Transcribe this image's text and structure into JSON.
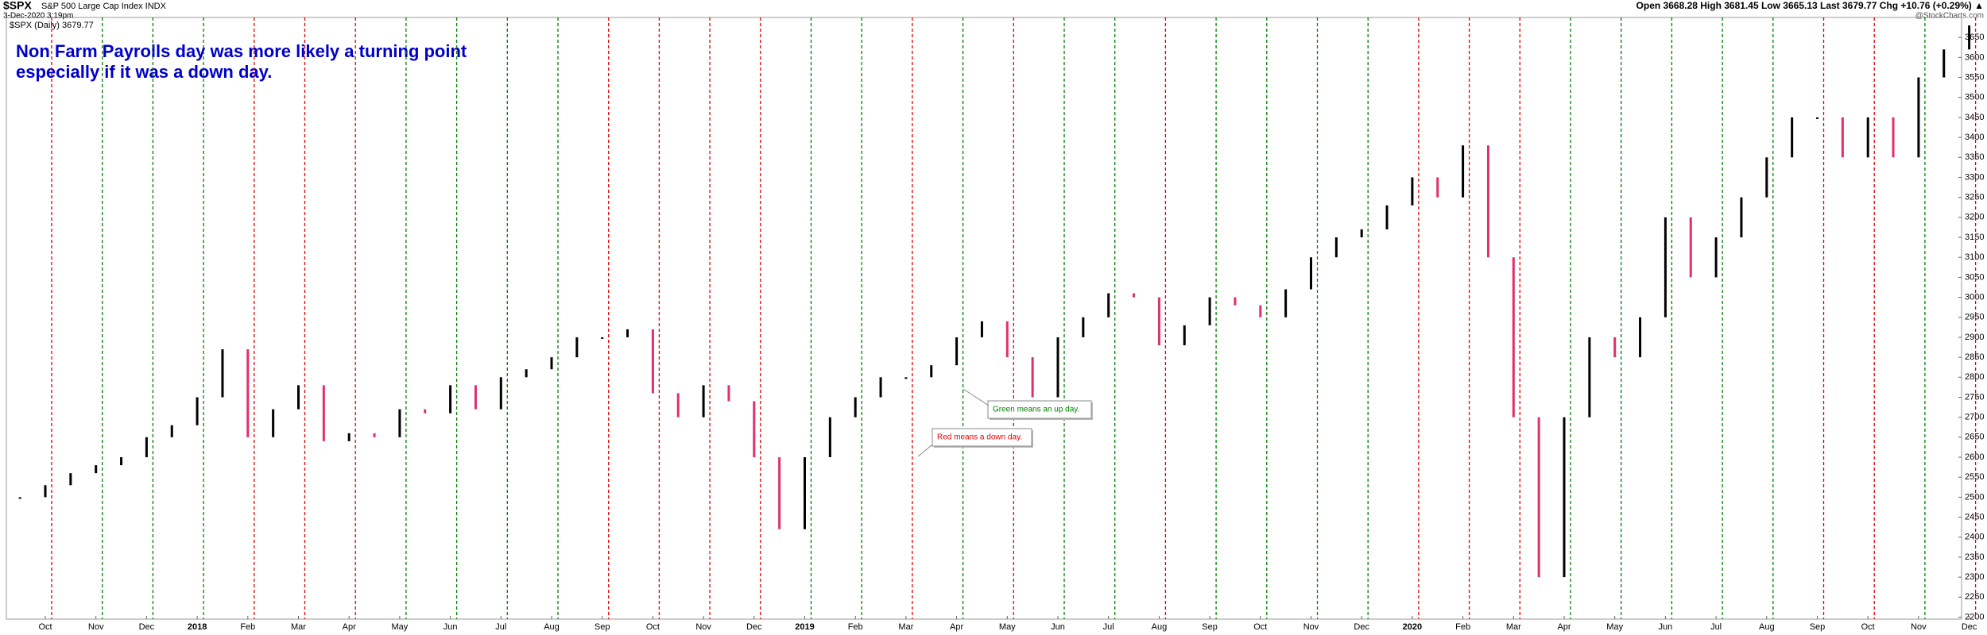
{
  "chart_data": {
    "type": "price",
    "title": "$SPX",
    "subtitle": "S&P 500 Large Cap Index INDX",
    "timestamp": "3-Dec-2020 3:19pm",
    "watermark": "@StockCharts.com",
    "quote": "Open 3668.28 High 3681.45 Low 3665.13 Last 3679.77 Chg +10.76 (+0.29%) ▲",
    "legend_label": "$SPX (Daily) 3679.77",
    "annotation": [
      "Non Farm Payrolls day was more likely a turning point",
      "especially if it was a down day."
    ],
    "callouts": [
      {
        "text": "Green means an up day.",
        "color": "#008000"
      },
      {
        "text": "Red means a down day.",
        "color": "#e00000"
      }
    ],
    "months": [
      "Oct",
      "Nov",
      "Dec",
      "2018",
      "Feb",
      "Mar",
      "Apr",
      "May",
      "Jun",
      "Jul",
      "Aug",
      "Sep",
      "Oct",
      "Nov",
      "Dec",
      "2019",
      "Feb",
      "Mar",
      "Apr",
      "May",
      "Jun",
      "Jul",
      "Aug",
      "Sep",
      "Oct",
      "Nov",
      "Dec",
      "2020",
      "Feb",
      "Mar",
      "Apr",
      "May",
      "Jun",
      "Jul",
      "Aug",
      "Sep",
      "Oct",
      "Nov",
      "Dec"
    ],
    "nfp_colors": [
      "#e00000",
      "#008000",
      "#008000",
      "#008000",
      "#e00000",
      "#e00000",
      "#e00000",
      "#008000",
      "#008000",
      "#008000",
      "#008000",
      "#e00000",
      "#e00000",
      "#e00000",
      "#e00000",
      "#008000",
      "#008000",
      "#e00000",
      "#008000",
      "#e00000",
      "#008000",
      "#008000",
      "#e00000",
      "#008000",
      "#008000",
      "#008000",
      "#008000",
      "#e00000",
      "#e00000",
      "#e00000",
      "#008000",
      "#008000",
      "#008000",
      "#008000",
      "#008000",
      "#e00000",
      "#e00000",
      "#008000",
      "#e00000"
    ],
    "series": [
      {
        "name": "$SPX",
        "up_color": "#000000",
        "down_color": "#e0306a",
        "values": [
          2500,
          2530,
          2560,
          2580,
          2600,
          2650,
          2680,
          2750,
          2870,
          2650,
          2720,
          2780,
          2640,
          2660,
          2650,
          2720,
          2710,
          2780,
          2720,
          2800,
          2820,
          2850,
          2900,
          2900,
          2920,
          2760,
          2700,
          2780,
          2740,
          2600,
          2420,
          2600,
          2700,
          2750,
          2800,
          2800,
          2830,
          2900,
          2940,
          2850,
          2750,
          2900,
          2950,
          3010,
          3000,
          2880,
          2930,
          3000,
          2980,
          2950,
          3020,
          3100,
          3150,
          3170,
          3230,
          3300,
          3250,
          3380,
          3100,
          2700,
          2300,
          2700,
          2900,
          2850,
          2950,
          3200,
          3050,
          3150,
          3250,
          3350,
          3450,
          3450,
          3350,
          3450,
          3350,
          3550,
          3620,
          3680
        ]
      }
    ],
    "ylim": [
      2195,
      3700
    ],
    "yticks": [
      2200,
      2250,
      2300,
      2350,
      2400,
      2450,
      2500,
      2550,
      2600,
      2650,
      2700,
      2750,
      2800,
      2850,
      2900,
      2950,
      3000,
      3050,
      3100,
      3150,
      3200,
      3250,
      3300,
      3350,
      3400,
      3450,
      3500,
      3550,
      3600,
      3650
    ],
    "grid": true
  }
}
